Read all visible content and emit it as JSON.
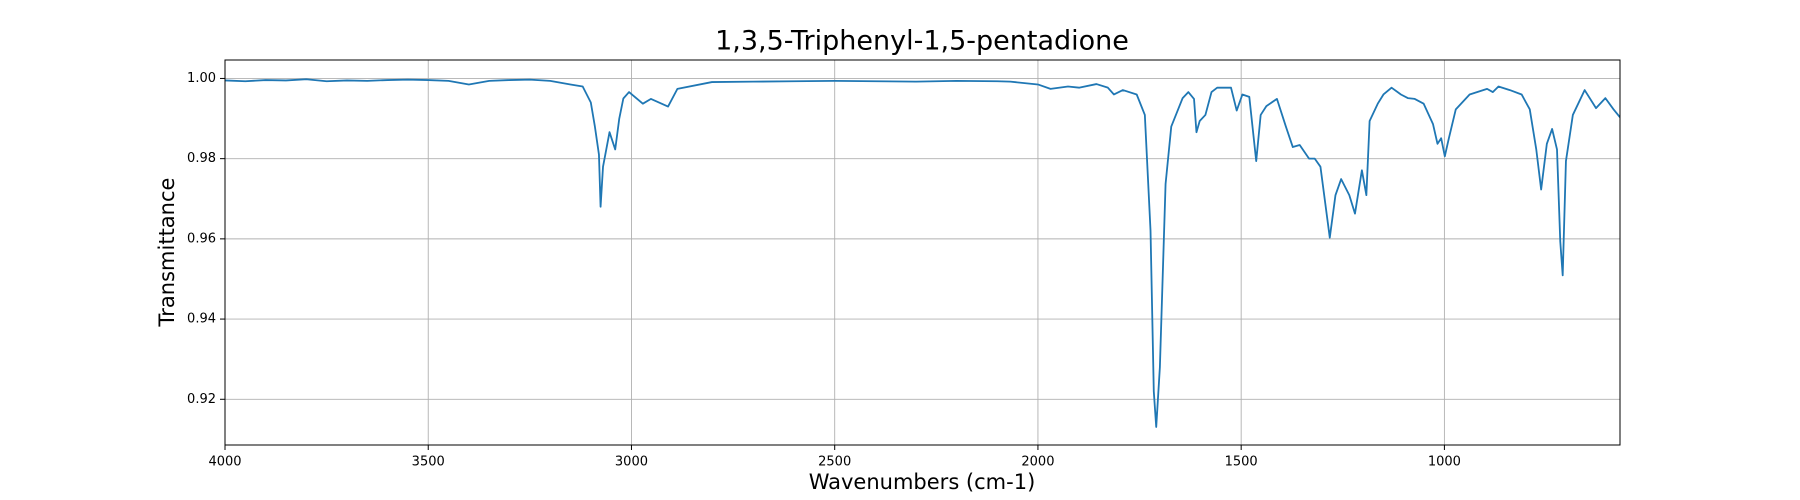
{
  "chart_data": {
    "type": "line",
    "title": "1,3,5-Triphenyl-1,5-pentadione",
    "xlabel": "Wavenumbers (cm-1)",
    "ylabel": "Transmittance",
    "color": "#1f77b4",
    "grid": true,
    "xlim": [
      4000,
      568
    ],
    "ylim": [
      0.9086,
      1.0046
    ],
    "xticks": [
      4000,
      3500,
      3000,
      2500,
      2000,
      1500,
      1000
    ],
    "yticks": [
      0.92,
      0.94,
      0.96,
      0.98,
      {
        "value": 1,
        "label": "1.00"
      }
    ],
    "x": [
      4000,
      3950,
      3900,
      3850,
      3800,
      3750,
      3700,
      3650,
      3600,
      3550,
      3500,
      3450,
      3400,
      3350,
      3300,
      3250,
      3200,
      3150,
      3120,
      3100,
      3090,
      3080,
      3076,
      3070,
      3054,
      3040,
      3030,
      3020,
      3006,
      2972,
      2952,
      2910,
      2887,
      2802,
      2700,
      2600,
      2500,
      2400,
      2300,
      2200,
      2100,
      2068,
      2000,
      1969,
      1926,
      1898,
      1856,
      1828,
      1813,
      1791,
      1757,
      1737,
      1723,
      1715,
      1709,
      1700,
      1686,
      1672,
      1644,
      1630,
      1616,
      1610,
      1602,
      1588,
      1573,
      1559,
      1525,
      1511,
      1497,
      1480,
      1463,
      1452,
      1438,
      1412,
      1390,
      1373,
      1356,
      1333,
      1319,
      1305,
      1282,
      1268,
      1254,
      1234,
      1220,
      1203,
      1192,
      1184,
      1164,
      1150,
      1130,
      1107,
      1090,
      1073,
      1051,
      1028,
      1017,
      1008,
      999,
      989,
      972,
      938,
      895,
      881,
      867,
      839,
      810,
      790,
      774,
      762,
      748,
      735,
      723,
      715,
      709,
      701,
      684,
      655,
      627,
      604,
      584,
      568
    ],
    "values": [
      0.9995,
      0.9993,
      0.9996,
      0.9995,
      0.9998,
      0.9993,
      0.9995,
      0.9994,
      0.9996,
      0.9997,
      0.9996,
      0.9994,
      0.9985,
      0.9994,
      0.9996,
      0.9997,
      0.9994,
      0.9985,
      0.998,
      0.994,
      0.988,
      0.981,
      0.968,
      0.978,
      0.9866,
      0.9823,
      0.99,
      0.995,
      0.9966,
      0.9937,
      0.9949,
      0.993,
      0.9974,
      0.9991,
      0.9992,
      0.9993,
      0.9994,
      0.9993,
      0.9992,
      0.9994,
      0.9993,
      0.9992,
      0.9985,
      0.9974,
      0.998,
      0.9977,
      0.9986,
      0.9977,
      0.996,
      0.9971,
      0.996,
      0.9909,
      0.962,
      0.922,
      0.9131,
      0.928,
      0.9737,
      0.988,
      0.9951,
      0.9966,
      0.9949,
      0.9866,
      0.9894,
      0.9909,
      0.9966,
      0.9977,
      0.9977,
      0.992,
      0.996,
      0.9954,
      0.9794,
      0.9909,
      0.9931,
      0.9949,
      0.988,
      0.9829,
      0.9834,
      0.98,
      0.98,
      0.978,
      0.9603,
      0.9709,
      0.9749,
      0.9709,
      0.9663,
      0.9771,
      0.9709,
      0.9894,
      0.9937,
      0.996,
      0.9977,
      0.996,
      0.9951,
      0.9949,
      0.9937,
      0.9886,
      0.9837,
      0.9851,
      0.9806,
      0.9851,
      0.9923,
      0.996,
      0.9974,
      0.9966,
      0.998,
      0.9971,
      0.996,
      0.9923,
      0.9823,
      0.9723,
      0.9837,
      0.9874,
      0.9823,
      0.9594,
      0.9509,
      0.9794,
      0.9909,
      0.9971,
      0.9926,
      0.9951,
      0.9923,
      0.9903
    ]
  }
}
